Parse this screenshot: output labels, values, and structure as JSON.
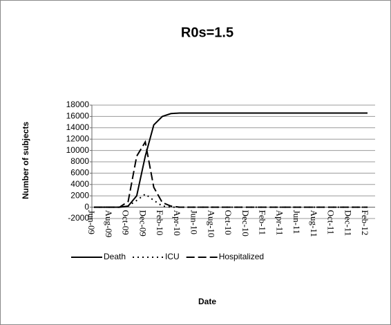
{
  "chart_data": {
    "type": "line",
    "title": "R0s=1.5",
    "x_label": "Date",
    "y_label": "Number of subjects",
    "categories": [
      "Jun-09",
      null,
      "Aug-09",
      null,
      "Oct-09",
      null,
      "Dec-09",
      null,
      "Feb-10",
      null,
      "Apr-10",
      null,
      "Jun-10",
      null,
      "Aug-10",
      null,
      "Oct-10",
      null,
      "Dec-10",
      null,
      "Feb-11",
      null,
      "Apr-11",
      null,
      "Jun-11",
      null,
      "Aug-11",
      null,
      "Oct-11",
      null,
      "Dec-11",
      null,
      "Feb-12"
    ],
    "series": [
      {
        "name": "Death",
        "color": "#000000",
        "line_style": "solid",
        "values": [
          0,
          0,
          0,
          0,
          200,
          2000,
          9000,
          14500,
          16000,
          16500,
          16600,
          16600,
          16600,
          16600,
          16600,
          16600,
          16600,
          16600,
          16600,
          16600,
          16600,
          16600,
          16600,
          16600,
          16600,
          16600,
          16600,
          16600,
          16600,
          16600,
          16600,
          16600,
          16600
        ]
      },
      {
        "name": "ICU",
        "color": "#000000",
        "line_style": "dotted",
        "values": [
          0,
          0,
          0,
          0,
          200,
          1200,
          2300,
          1200,
          200,
          0,
          0,
          0,
          0,
          0,
          0,
          0,
          0,
          0,
          0,
          0,
          0,
          0,
          0,
          0,
          0,
          0,
          0,
          0,
          0,
          0,
          0,
          0,
          0
        ]
      },
      {
        "name": "Hospitalized",
        "color": "#000000",
        "line_style": "dashed",
        "values": [
          0,
          0,
          0,
          0,
          1000,
          9000,
          11500,
          3500,
          800,
          200,
          0,
          0,
          0,
          0,
          0,
          0,
          0,
          0,
          0,
          0,
          0,
          0,
          0,
          0,
          0,
          0,
          0,
          0,
          0,
          0,
          0,
          0,
          0
        ]
      }
    ],
    "ylim": [
      -2000,
      18000
    ],
    "yticks": [
      -2000,
      0,
      2000,
      4000,
      6000,
      8000,
      10000,
      12000,
      14000,
      16000,
      18000
    ],
    "grid": true,
    "legend": "bottom"
  }
}
